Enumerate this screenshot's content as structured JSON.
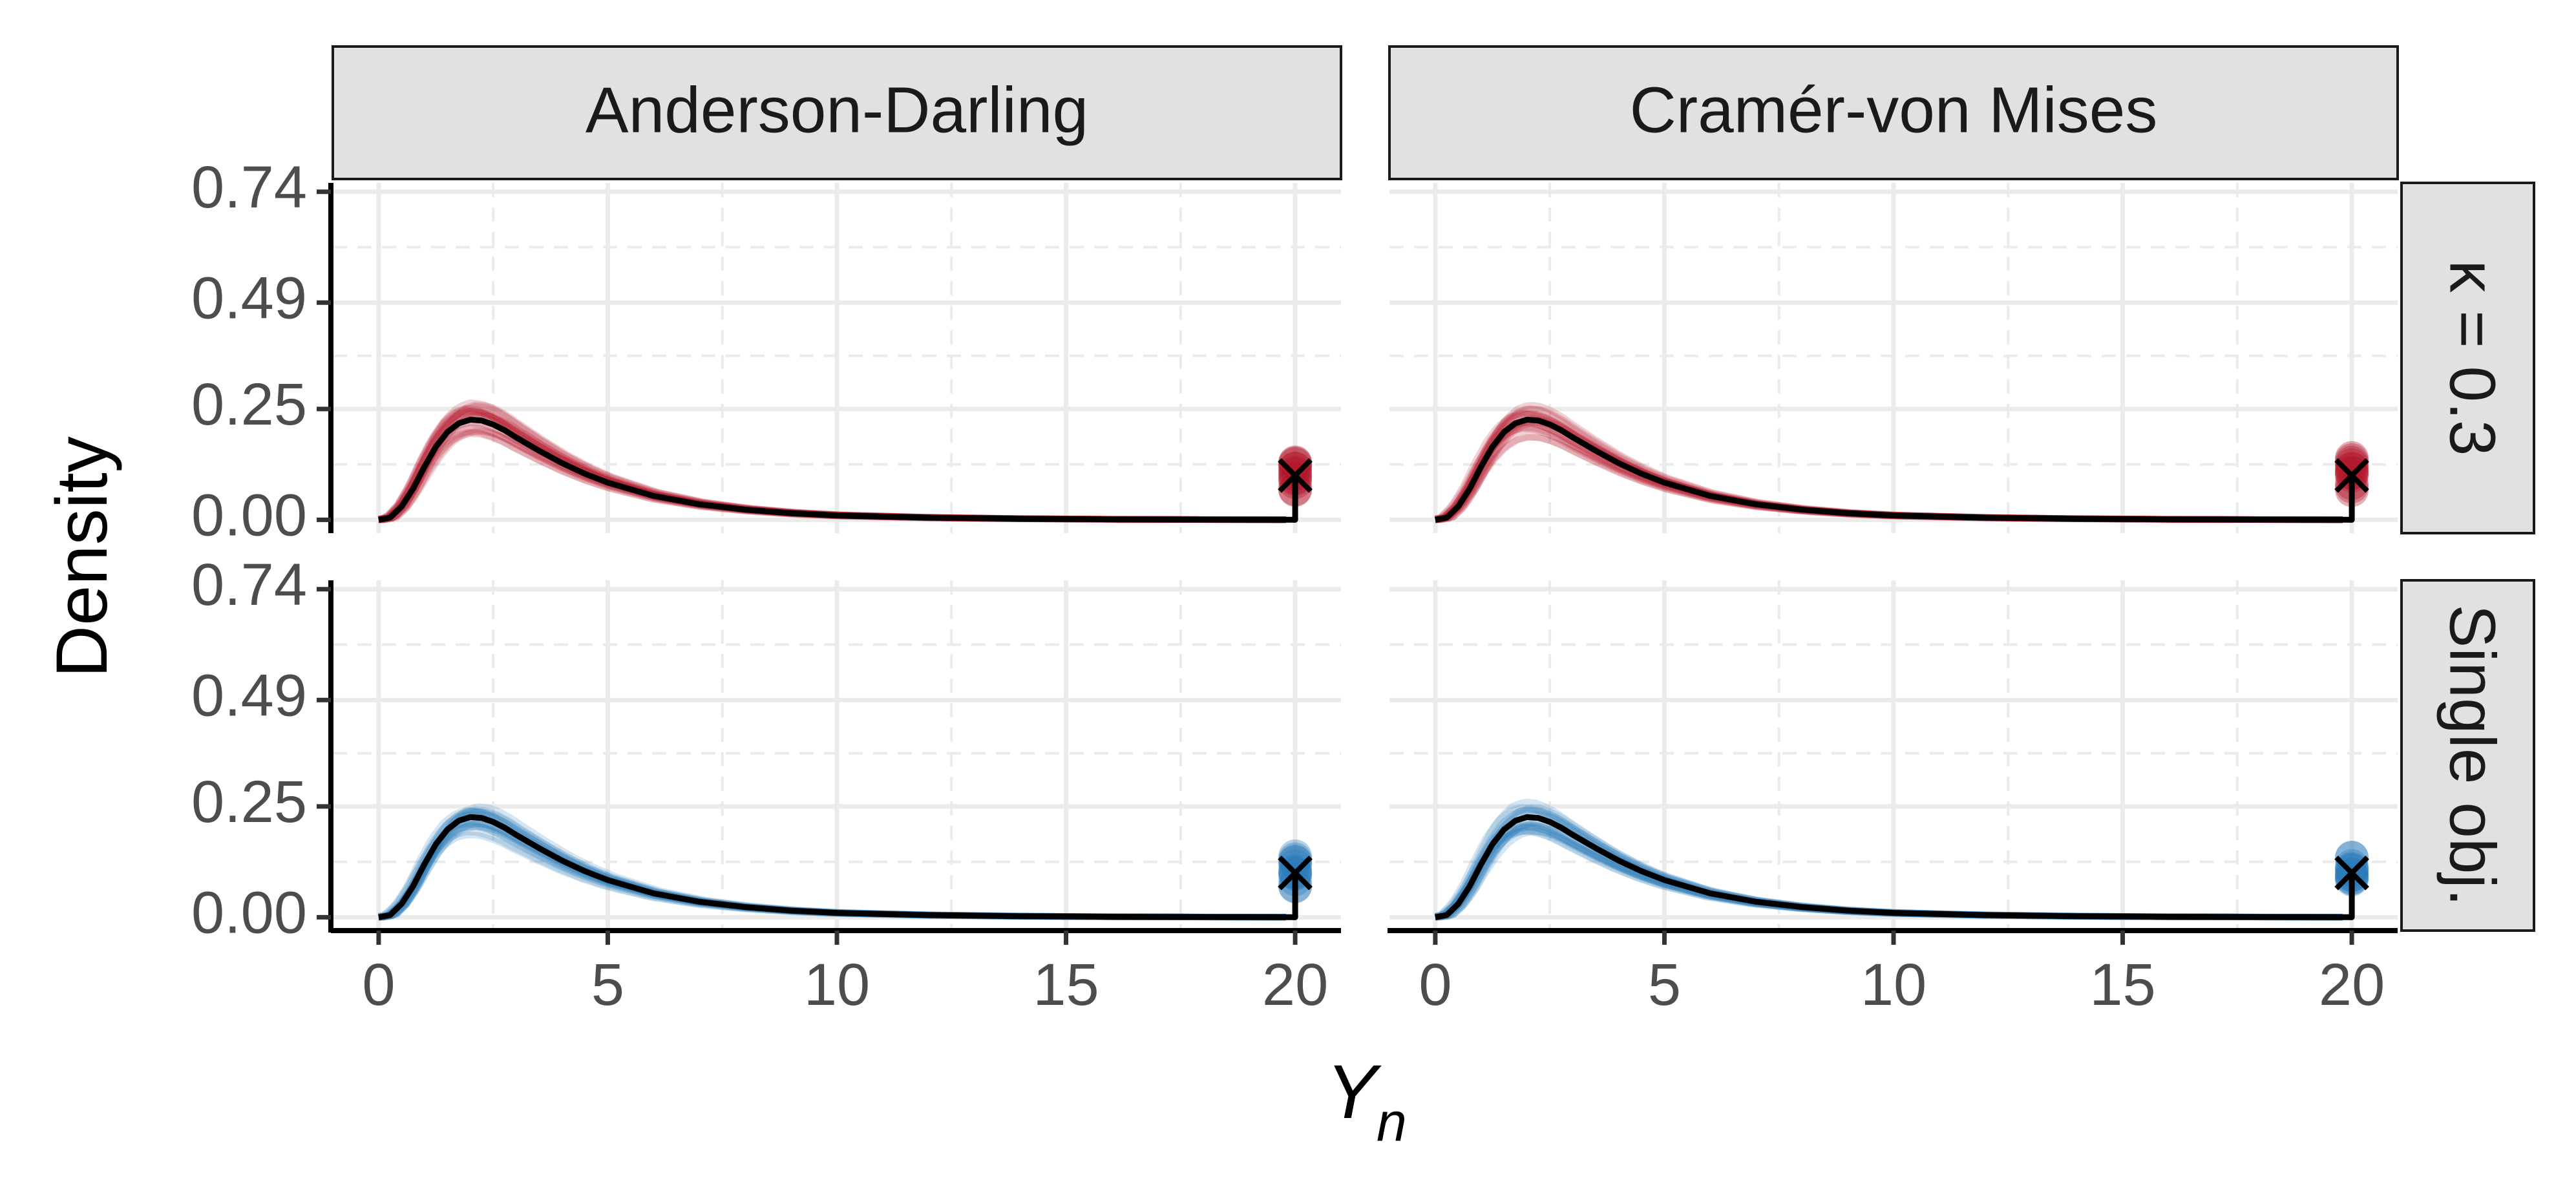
{
  "chart_data": {
    "type": "line",
    "facet_columns": [
      "Anderson-Darling",
      "Cramér-von Mises"
    ],
    "facet_rows": [
      "κ = 0.3",
      "Single obj."
    ],
    "xlabel": {
      "main": "Y",
      "sub": "n"
    },
    "ylabel": "Density",
    "xlim": [
      -1,
      21
    ],
    "ylim": [
      -0.03,
      0.76
    ],
    "x_ticks": [
      0,
      5,
      10,
      15,
      20
    ],
    "x_tick_labels": [
      "0",
      "5",
      "10",
      "15",
      "20"
    ],
    "y_ticks": [
      0.0,
      0.25,
      0.49,
      0.74
    ],
    "y_tick_labels": [
      "0.00",
      "0.25",
      "0.49",
      "0.74"
    ],
    "grid": true,
    "row_colors": [
      "#b2182b",
      "#2b7bba"
    ],
    "reference_color": "#000000",
    "reference_curve": {
      "x": [
        0,
        0.25,
        0.5,
        0.75,
        1.0,
        1.25,
        1.5,
        1.75,
        2.0,
        2.25,
        2.5,
        2.75,
        3.0,
        3.5,
        4.0,
        4.5,
        5.0,
        6.0,
        7.0,
        8.0,
        9.0,
        10.0,
        12.0,
        14.0,
        16.0,
        18.0,
        19.9
      ],
      "y": [
        0.0,
        0.005,
        0.03,
        0.07,
        0.12,
        0.165,
        0.198,
        0.218,
        0.226,
        0.224,
        0.215,
        0.202,
        0.186,
        0.156,
        0.128,
        0.104,
        0.084,
        0.054,
        0.035,
        0.023,
        0.015,
        0.01,
        0.005,
        0.0025,
        0.0012,
        0.0006,
        0.0003
      ]
    },
    "point_mass": {
      "x": 20,
      "y": 0.1,
      "marker": "×"
    }
  }
}
